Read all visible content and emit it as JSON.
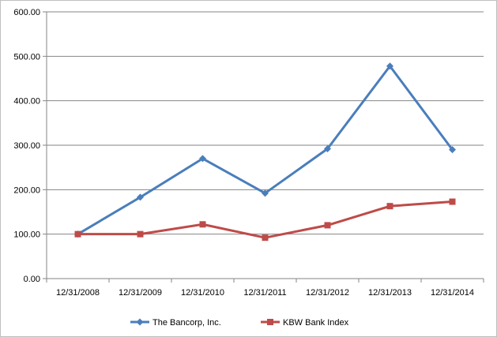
{
  "chart_data": {
    "type": "line",
    "title": "",
    "xlabel": "",
    "ylabel": "",
    "categories": [
      "12/31/2008",
      "12/31/2009",
      "12/31/2010",
      "12/31/2011",
      "12/31/2012",
      "12/31/2013",
      "12/31/2014"
    ],
    "ylim": [
      0,
      600
    ],
    "yticks": [
      "0.00",
      "100.00",
      "200.00",
      "300.00",
      "400.00",
      "500.00",
      "600.00"
    ],
    "grid": true,
    "legend_position": "bottom",
    "series": [
      {
        "name": "The Bancorp, Inc.",
        "color": "#4A7EBB",
        "marker": "diamond",
        "values": [
          100,
          183,
          270,
          192,
          292,
          478,
          290
        ]
      },
      {
        "name": "KBW Bank Index",
        "color": "#BE4B48",
        "marker": "square",
        "values": [
          100,
          100,
          122,
          92,
          120,
          163,
          173
        ]
      }
    ]
  }
}
